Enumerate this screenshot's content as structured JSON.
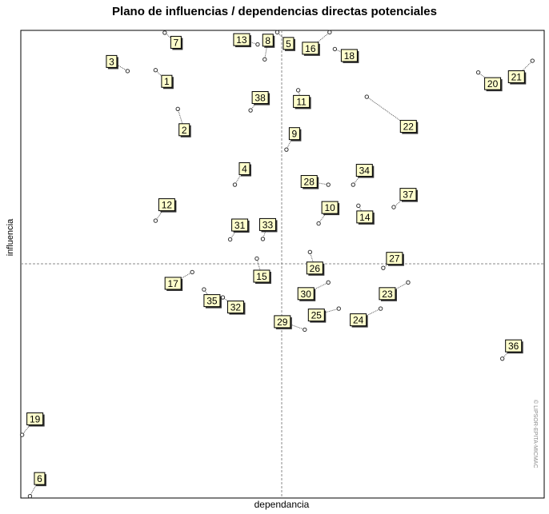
{
  "chart_data": {
    "type": "scatter",
    "title": "Plano de influencias / dependencias directas potenciales",
    "xlabel": "dependancia",
    "ylabel": "influencia",
    "watermark": "© LIPSOR-EPITA-MICMAC",
    "grid": false,
    "mean_lines": true,
    "colors": {
      "frame": "#000000",
      "axis": "#888888",
      "label_bg": "#ffffcc",
      "leader": "#555555"
    },
    "points": [
      {
        "id": "1",
        "x": 0.515,
        "y": 0.915
      },
      {
        "id": "2",
        "x": 0.6,
        "y": 0.832
      },
      {
        "id": "3",
        "x": 0.408,
        "y": 0.913
      },
      {
        "id": "4",
        "x": 0.818,
        "y": 0.67
      },
      {
        "id": "5",
        "x": 0.98,
        "y": 0.996
      },
      {
        "id": "6",
        "x": 0.035,
        "y": 0.004
      },
      {
        "id": "7",
        "x": 0.55,
        "y": 0.995
      },
      {
        "id": "8",
        "x": 0.932,
        "y": 0.938
      },
      {
        "id": "9",
        "x": 1.015,
        "y": 0.745
      },
      {
        "id": "10",
        "x": 1.138,
        "y": 0.587
      },
      {
        "id": "11",
        "x": 1.06,
        "y": 0.872
      },
      {
        "id": "12",
        "x": 0.515,
        "y": 0.593
      },
      {
        "id": "13",
        "x": 0.905,
        "y": 0.97
      },
      {
        "id": "14",
        "x": 1.29,
        "y": 0.625
      },
      {
        "id": "15",
        "x": 0.902,
        "y": 0.512
      },
      {
        "id": "16",
        "x": 1.18,
        "y": 0.996
      },
      {
        "id": "17",
        "x": 0.655,
        "y": 0.483
      },
      {
        "id": "18",
        "x": 1.2,
        "y": 0.96
      },
      {
        "id": "19",
        "x": 0.005,
        "y": 0.135
      },
      {
        "id": "20",
        "x": 1.748,
        "y": 0.91
      },
      {
        "id": "21",
        "x": 1.955,
        "y": 0.935
      },
      {
        "id": "22",
        "x": 1.322,
        "y": 0.858
      },
      {
        "id": "23",
        "x": 1.48,
        "y": 0.461
      },
      {
        "id": "24",
        "x": 1.375,
        "y": 0.405
      },
      {
        "id": "25",
        "x": 1.215,
        "y": 0.405
      },
      {
        "id": "26",
        "x": 1.105,
        "y": 0.526
      },
      {
        "id": "27",
        "x": 1.385,
        "y": 0.492
      },
      {
        "id": "28",
        "x": 1.175,
        "y": 0.67
      },
      {
        "id": "29",
        "x": 1.085,
        "y": 0.36
      },
      {
        "id": "30",
        "x": 1.175,
        "y": 0.461
      },
      {
        "id": "31",
        "x": 0.8,
        "y": 0.553
      },
      {
        "id": "32",
        "x": 0.772,
        "y": 0.429
      },
      {
        "id": "33",
        "x": 0.925,
        "y": 0.554
      },
      {
        "id": "34",
        "x": 1.27,
        "y": 0.67
      },
      {
        "id": "35",
        "x": 0.7,
        "y": 0.446
      },
      {
        "id": "36",
        "x": 1.84,
        "y": 0.298
      },
      {
        "id": "37",
        "x": 1.425,
        "y": 0.622
      },
      {
        "id": "38",
        "x": 0.878,
        "y": 0.829
      }
    ]
  }
}
